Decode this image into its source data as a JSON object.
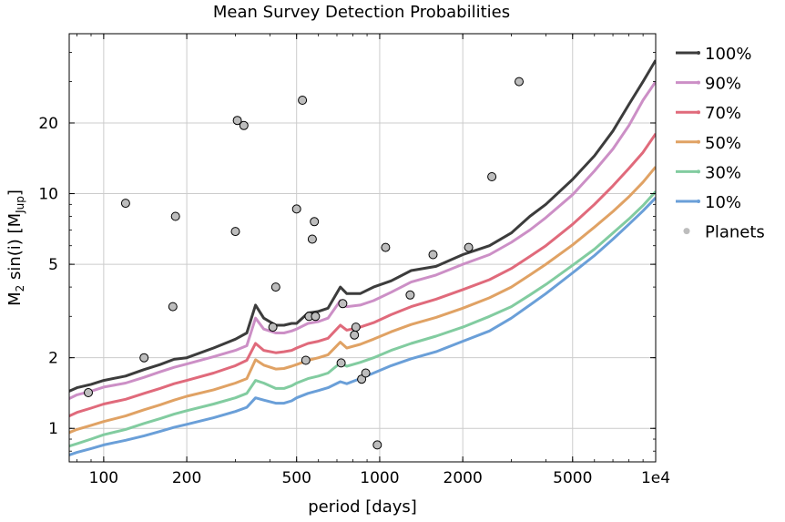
{
  "chart_data": {
    "type": "line",
    "title": "Mean Survey Detection Probabilities",
    "xlabel": "period [days]",
    "ylabel": "M",
    "ylabel_sub": "2",
    "ylabel_tail": " sin(i) [M",
    "ylabel_unit_sub": "Jup",
    "ylabel_close": "]",
    "x_scale": "log",
    "y_scale": "log",
    "xlim": [
      75,
      10000
    ],
    "ylim": [
      0.72,
      48
    ],
    "grid": true,
    "legend_position": "outside-right",
    "x_ticks": [
      {
        "value": 100,
        "label": "100"
      },
      {
        "value": 200,
        "label": "200"
      },
      {
        "value": 500,
        "label": "500"
      },
      {
        "value": 1000,
        "label": "1000"
      },
      {
        "value": 2000,
        "label": "2000"
      },
      {
        "value": 5000,
        "label": "5000"
      },
      {
        "value": 10000,
        "label": "1e4"
      }
    ],
    "y_ticks": [
      {
        "value": 1,
        "label": "1"
      },
      {
        "value": 2,
        "label": "2"
      },
      {
        "value": 5,
        "label": "5"
      },
      {
        "value": 10,
        "label": "10"
      },
      {
        "value": 20,
        "label": "20"
      }
    ],
    "series": [
      {
        "name": "100%",
        "color": "#3c3c3c",
        "points": [
          [
            75,
            1.44
          ],
          [
            80,
            1.49
          ],
          [
            90,
            1.54
          ],
          [
            100,
            1.6
          ],
          [
            120,
            1.67
          ],
          [
            140,
            1.78
          ],
          [
            160,
            1.87
          ],
          [
            180,
            1.97
          ],
          [
            200,
            2.0
          ],
          [
            250,
            2.2
          ],
          [
            300,
            2.4
          ],
          [
            330,
            2.55
          ],
          [
            355,
            3.35
          ],
          [
            380,
            2.95
          ],
          [
            420,
            2.75
          ],
          [
            450,
            2.75
          ],
          [
            480,
            2.8
          ],
          [
            500,
            2.8
          ],
          [
            550,
            3.1
          ],
          [
            600,
            3.15
          ],
          [
            650,
            3.25
          ],
          [
            720,
            4.0
          ],
          [
            760,
            3.75
          ],
          [
            850,
            3.75
          ],
          [
            950,
            4.0
          ],
          [
            1100,
            4.25
          ],
          [
            1300,
            4.7
          ],
          [
            1600,
            4.9
          ],
          [
            2000,
            5.5
          ],
          [
            2500,
            6.0
          ],
          [
            3000,
            6.8
          ],
          [
            3500,
            8.0
          ],
          [
            4000,
            9.0
          ],
          [
            5000,
            11.5
          ],
          [
            6000,
            14.5
          ],
          [
            7000,
            18.5
          ],
          [
            8000,
            24.0
          ],
          [
            9000,
            30.0
          ],
          [
            10000,
            37.0
          ]
        ]
      },
      {
        "name": "90%",
        "color": "#cc8fc6",
        "points": [
          [
            75,
            1.34
          ],
          [
            80,
            1.39
          ],
          [
            90,
            1.44
          ],
          [
            100,
            1.5
          ],
          [
            120,
            1.56
          ],
          [
            140,
            1.65
          ],
          [
            160,
            1.74
          ],
          [
            180,
            1.82
          ],
          [
            200,
            1.88
          ],
          [
            250,
            2.02
          ],
          [
            300,
            2.15
          ],
          [
            330,
            2.25
          ],
          [
            355,
            2.95
          ],
          [
            380,
            2.65
          ],
          [
            420,
            2.55
          ],
          [
            450,
            2.55
          ],
          [
            480,
            2.6
          ],
          [
            500,
            2.65
          ],
          [
            550,
            2.8
          ],
          [
            600,
            2.85
          ],
          [
            650,
            2.95
          ],
          [
            720,
            3.5
          ],
          [
            760,
            3.3
          ],
          [
            850,
            3.35
          ],
          [
            950,
            3.5
          ],
          [
            1100,
            3.8
          ],
          [
            1300,
            4.2
          ],
          [
            1600,
            4.5
          ],
          [
            2000,
            5.0
          ],
          [
            2500,
            5.5
          ],
          [
            3000,
            6.2
          ],
          [
            3500,
            7.0
          ],
          [
            4000,
            7.9
          ],
          [
            5000,
            9.9
          ],
          [
            6000,
            12.5
          ],
          [
            7000,
            15.5
          ],
          [
            8000,
            19.5
          ],
          [
            9000,
            25.0
          ],
          [
            10000,
            30.0
          ]
        ]
      },
      {
        "name": "70%",
        "color": "#e06a7b",
        "points": [
          [
            75,
            1.13
          ],
          [
            80,
            1.17
          ],
          [
            90,
            1.22
          ],
          [
            100,
            1.27
          ],
          [
            120,
            1.33
          ],
          [
            140,
            1.41
          ],
          [
            160,
            1.48
          ],
          [
            180,
            1.55
          ],
          [
            200,
            1.6
          ],
          [
            250,
            1.72
          ],
          [
            300,
            1.85
          ],
          [
            330,
            1.95
          ],
          [
            355,
            2.3
          ],
          [
            380,
            2.15
          ],
          [
            420,
            2.1
          ],
          [
            450,
            2.12
          ],
          [
            480,
            2.15
          ],
          [
            500,
            2.2
          ],
          [
            550,
            2.3
          ],
          [
            600,
            2.35
          ],
          [
            650,
            2.42
          ],
          [
            720,
            2.75
          ],
          [
            760,
            2.62
          ],
          [
            850,
            2.7
          ],
          [
            950,
            2.82
          ],
          [
            1100,
            3.05
          ],
          [
            1300,
            3.3
          ],
          [
            1600,
            3.55
          ],
          [
            2000,
            3.9
          ],
          [
            2500,
            4.3
          ],
          [
            3000,
            4.8
          ],
          [
            3500,
            5.4
          ],
          [
            4000,
            6.0
          ],
          [
            5000,
            7.4
          ],
          [
            6000,
            9.0
          ],
          [
            7000,
            10.8
          ],
          [
            8000,
            12.8
          ],
          [
            9000,
            15.0
          ],
          [
            10000,
            18.0
          ]
        ]
      },
      {
        "name": "50%",
        "color": "#e0a264",
        "points": [
          [
            75,
            0.96
          ],
          [
            80,
            0.99
          ],
          [
            90,
            1.03
          ],
          [
            100,
            1.07
          ],
          [
            120,
            1.13
          ],
          [
            140,
            1.2
          ],
          [
            160,
            1.26
          ],
          [
            180,
            1.32
          ],
          [
            200,
            1.37
          ],
          [
            250,
            1.46
          ],
          [
            300,
            1.56
          ],
          [
            330,
            1.63
          ],
          [
            355,
            1.96
          ],
          [
            380,
            1.86
          ],
          [
            420,
            1.79
          ],
          [
            450,
            1.8
          ],
          [
            480,
            1.84
          ],
          [
            500,
            1.87
          ],
          [
            550,
            1.95
          ],
          [
            600,
            2.0
          ],
          [
            650,
            2.06
          ],
          [
            720,
            2.33
          ],
          [
            760,
            2.2
          ],
          [
            850,
            2.28
          ],
          [
            950,
            2.4
          ],
          [
            1100,
            2.58
          ],
          [
            1300,
            2.77
          ],
          [
            1600,
            2.97
          ],
          [
            2000,
            3.25
          ],
          [
            2500,
            3.6
          ],
          [
            3000,
            4.0
          ],
          [
            3500,
            4.5
          ],
          [
            4000,
            5.0
          ],
          [
            5000,
            6.05
          ],
          [
            6000,
            7.2
          ],
          [
            7000,
            8.4
          ],
          [
            8000,
            9.7
          ],
          [
            9000,
            11.2
          ],
          [
            10000,
            13.0
          ]
        ]
      },
      {
        "name": "30%",
        "color": "#82cca0",
        "points": [
          [
            75,
            0.84
          ],
          [
            80,
            0.86
          ],
          [
            90,
            0.9
          ],
          [
            100,
            0.94
          ],
          [
            120,
            0.99
          ],
          [
            140,
            1.05
          ],
          [
            160,
            1.1
          ],
          [
            180,
            1.15
          ],
          [
            200,
            1.19
          ],
          [
            250,
            1.27
          ],
          [
            300,
            1.35
          ],
          [
            330,
            1.41
          ],
          [
            355,
            1.6
          ],
          [
            380,
            1.56
          ],
          [
            420,
            1.48
          ],
          [
            450,
            1.48
          ],
          [
            480,
            1.52
          ],
          [
            500,
            1.56
          ],
          [
            550,
            1.63
          ],
          [
            600,
            1.67
          ],
          [
            650,
            1.72
          ],
          [
            720,
            1.9
          ],
          [
            760,
            1.84
          ],
          [
            850,
            1.91
          ],
          [
            950,
            2.0
          ],
          [
            1100,
            2.15
          ],
          [
            1300,
            2.3
          ],
          [
            1600,
            2.47
          ],
          [
            2000,
            2.7
          ],
          [
            2500,
            3.0
          ],
          [
            3000,
            3.3
          ],
          [
            3500,
            3.7
          ],
          [
            4000,
            4.1
          ],
          [
            5000,
            4.95
          ],
          [
            6000,
            5.8
          ],
          [
            7000,
            6.8
          ],
          [
            8000,
            7.8
          ],
          [
            9000,
            8.9
          ],
          [
            10000,
            10.2
          ]
        ]
      },
      {
        "name": "10%",
        "color": "#6a9fd8",
        "points": [
          [
            75,
            0.77
          ],
          [
            80,
            0.79
          ],
          [
            90,
            0.82
          ],
          [
            100,
            0.85
          ],
          [
            120,
            0.89
          ],
          [
            140,
            0.93
          ],
          [
            160,
            0.97
          ],
          [
            180,
            1.01
          ],
          [
            200,
            1.04
          ],
          [
            250,
            1.11
          ],
          [
            300,
            1.18
          ],
          [
            330,
            1.23
          ],
          [
            355,
            1.35
          ],
          [
            380,
            1.32
          ],
          [
            420,
            1.28
          ],
          [
            450,
            1.28
          ],
          [
            480,
            1.31
          ],
          [
            500,
            1.35
          ],
          [
            550,
            1.41
          ],
          [
            600,
            1.45
          ],
          [
            650,
            1.49
          ],
          [
            720,
            1.58
          ],
          [
            760,
            1.55
          ],
          [
            850,
            1.63
          ],
          [
            950,
            1.72
          ],
          [
            1100,
            1.85
          ],
          [
            1300,
            1.98
          ],
          [
            1600,
            2.12
          ],
          [
            2000,
            2.35
          ],
          [
            2500,
            2.6
          ],
          [
            3000,
            2.95
          ],
          [
            3500,
            3.35
          ],
          [
            4000,
            3.75
          ],
          [
            5000,
            4.6
          ],
          [
            6000,
            5.45
          ],
          [
            7000,
            6.4
          ],
          [
            8000,
            7.4
          ],
          [
            9000,
            8.45
          ],
          [
            10000,
            9.6
          ]
        ]
      }
    ],
    "planets": {
      "name": "Planets",
      "points": [
        [
          88,
          1.42
        ],
        [
          120,
          9.1
        ],
        [
          140,
          2.0
        ],
        [
          178,
          3.3
        ],
        [
          182,
          8.0
        ],
        [
          300,
          6.9
        ],
        [
          305,
          20.5
        ],
        [
          322,
          19.5
        ],
        [
          410,
          2.7
        ],
        [
          420,
          4.0
        ],
        [
          500,
          8.6
        ],
        [
          525,
          25.0
        ],
        [
          540,
          1.95
        ],
        [
          555,
          3.0
        ],
        [
          570,
          6.4
        ],
        [
          580,
          7.6
        ],
        [
          585,
          3.0
        ],
        [
          725,
          1.9
        ],
        [
          735,
          3.4
        ],
        [
          810,
          2.5
        ],
        [
          820,
          2.7
        ],
        [
          860,
          1.62
        ],
        [
          890,
          1.72
        ],
        [
          980,
          0.85
        ],
        [
          1050,
          5.9
        ],
        [
          1290,
          3.7
        ],
        [
          1560,
          5.5
        ],
        [
          2100,
          5.9
        ],
        [
          2550,
          11.8
        ],
        [
          3200,
          30.0
        ]
      ]
    }
  }
}
